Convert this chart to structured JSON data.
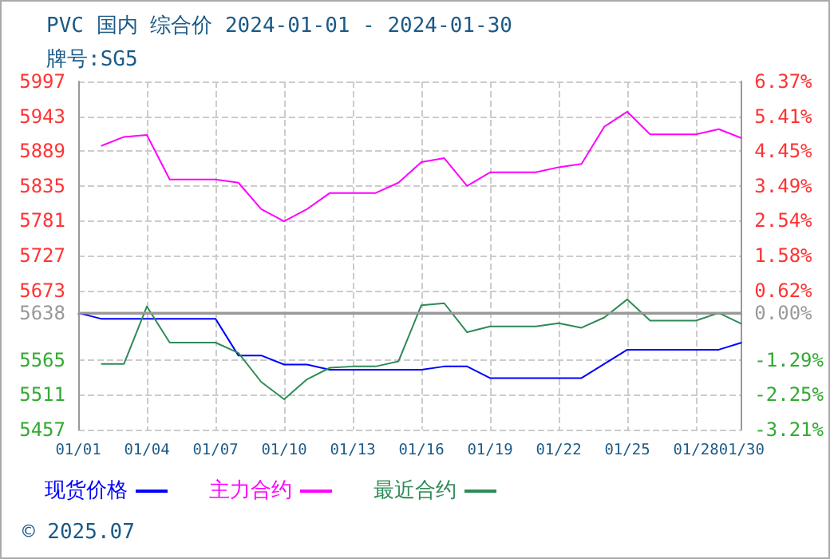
{
  "chart_data": {
    "type": "line",
    "title": "PVC 国内 综合价 2024-01-01 - 2024-01-30",
    "subtitle": "牌号:SG5",
    "x": [
      "2024-01-01",
      "2024-01-02",
      "2024-01-03",
      "2024-01-04",
      "2024-01-05",
      "2024-01-06",
      "2024-01-07",
      "2024-01-08",
      "2024-01-09",
      "2024-01-10",
      "2024-01-11",
      "2024-01-12",
      "2024-01-13",
      "2024-01-14",
      "2024-01-15",
      "2024-01-16",
      "2024-01-17",
      "2024-01-18",
      "2024-01-19",
      "2024-01-20",
      "2024-01-21",
      "2024-01-22",
      "2024-01-23",
      "2024-01-24",
      "2024-01-25",
      "2024-01-26",
      "2024-01-27",
      "2024-01-28",
      "2024-01-29",
      "2024-01-30"
    ],
    "series": [
      {
        "name": "现货价格",
        "color": "#0000ff",
        "values": [
          5638,
          5629,
          5629,
          5629,
          5629,
          5629,
          5629,
          5572,
          5572,
          5558,
          5558,
          5550,
          5550,
          5550,
          5550,
          5550,
          5555,
          5555,
          5537,
          5537,
          5537,
          5537,
          5537,
          5559,
          5581,
          5581,
          5581,
          5581,
          5581,
          5592
        ]
      },
      {
        "name": "主力合约",
        "color": "#ff00ff",
        "values": [
          null,
          5897,
          5911,
          5914,
          5845,
          5845,
          5845,
          5840,
          5799,
          5780,
          5799,
          5824,
          5824,
          5824,
          5840,
          5872,
          5878,
          5835,
          5856,
          5856,
          5856,
          5864,
          5869,
          5927,
          5950,
          5915,
          5915,
          5915,
          5923,
          5909
        ]
      },
      {
        "name": "最近合约",
        "color": "#2e8b57",
        "values": [
          null,
          5559,
          5559,
          5648,
          5592,
          5592,
          5592,
          5576,
          5531,
          5504,
          5535,
          5553,
          5555,
          5555,
          5563,
          5650,
          5653,
          5608,
          5617,
          5617,
          5617,
          5622,
          5615,
          5631,
          5659,
          5626,
          5626,
          5626,
          5638,
          5621
        ]
      }
    ],
    "xlim": [
      "2024-01-01",
      "2024-01-30"
    ],
    "xticks": [
      {
        "value": "2024-01-01",
        "label": "01/01"
      },
      {
        "value": "2024-01-04",
        "label": "01/04"
      },
      {
        "value": "2024-01-07",
        "label": "01/07"
      },
      {
        "value": "2024-01-10",
        "label": "01/10"
      },
      {
        "value": "2024-01-13",
        "label": "01/13"
      },
      {
        "value": "2024-01-16",
        "label": "01/16"
      },
      {
        "value": "2024-01-19",
        "label": "01/19"
      },
      {
        "value": "2024-01-22",
        "label": "01/22"
      },
      {
        "value": "2024-01-25",
        "label": "01/25"
      },
      {
        "value": "2024-01-28",
        "label": "01/28"
      },
      {
        "value": "2024-01-30",
        "label": "01/30"
      }
    ],
    "ylim": [
      5457,
      5997
    ],
    "yticks": [
      5457,
      5511,
      5565,
      5638,
      5673,
      5727,
      5781,
      5835,
      5889,
      5943,
      5997
    ],
    "y2lim": [
      -3.21,
      6.37
    ],
    "y2ticks": [
      {
        "value": -3.21,
        "label": "-3.21%"
      },
      {
        "value": -2.25,
        "label": "-2.25%"
      },
      {
        "value": -1.29,
        "label": "-1.29%"
      },
      {
        "value": 0,
        "label": "0.00%"
      },
      {
        "value": 0.62,
        "label": "0.62%"
      },
      {
        "value": 1.58,
        "label": "1.58%"
      },
      {
        "value": 2.54,
        "label": "2.54%"
      },
      {
        "value": 3.49,
        "label": "3.49%"
      },
      {
        "value": 4.45,
        "label": "4.45%"
      },
      {
        "value": 5.41,
        "label": "5.41%"
      },
      {
        "value": 6.37,
        "label": "6.37%"
      }
    ],
    "ref_lines": [
      {
        "axis": "y",
        "value": 5638,
        "color": "#999999"
      }
    ],
    "annotations": [
      "© 2025.07"
    ],
    "grid": true,
    "legend": "bottom",
    "marker": "none",
    "line_style": "solid"
  }
}
